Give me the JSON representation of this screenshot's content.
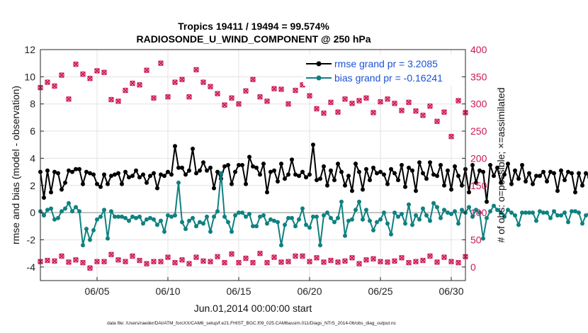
{
  "chart_data": {
    "type": "line",
    "title": "Tropics 19411 / 19494 = 99.574%",
    "subtitle": "RADIOSONDE_U_WIND_COMPONENT @ 250 hPa",
    "xlabel": "Jun.01,2014 00:00:00 start",
    "ylabel": "rmse and bias (model - observation)",
    "ylabel_right": "# of obs: o=possible; ×=assimilated",
    "xlim": [
      1,
      31
    ],
    "ylim": [
      -5,
      12
    ],
    "ylim_right": [
      -25,
      400
    ],
    "x_tick_values": [
      5,
      10,
      15,
      20,
      25,
      30
    ],
    "x_tick_labels": [
      "06/05",
      "06/10",
      "06/15",
      "06/20",
      "06/25",
      "06/30"
    ],
    "y_tick_labels": [
      "-4",
      "-2",
      "0",
      "2",
      "4",
      "6",
      "8",
      "10",
      "12"
    ],
    "y_right_tick_labels": [
      "0",
      "50",
      "100",
      "150",
      "200",
      "250",
      "300",
      "350",
      "400"
    ],
    "colors": {
      "rmse": "#000000",
      "bias": "#0f8080",
      "obs": "#cc1756",
      "zero_line": "#b0b0b0",
      "legend_text": "#1a52d6"
    },
    "series": [
      {
        "name": "rmse grand pr = 3.2085",
        "axis": "left",
        "x_start": 1.0,
        "x_step": 0.25,
        "values": [
          3.0,
          1.1,
          3.1,
          1.5,
          3.0,
          2.9,
          1.7,
          2.2,
          3.1,
          3.0,
          3.2,
          3.2,
          2.1,
          3.0,
          2.9,
          2.8,
          2.1,
          1.9,
          2.8,
          2.1,
          2.7,
          2.8,
          2.9,
          2.1,
          3.0,
          2.6,
          2.7,
          3.1,
          2.6,
          2.8,
          2.2,
          2.7,
          2.9,
          1.8,
          2.8,
          2.7,
          3.0,
          2.8,
          4.9,
          3.3,
          3.3,
          2.8,
          3.1,
          4.7,
          2.9,
          3.1,
          3.7,
          3.1,
          3.3,
          1.8,
          3.0,
          2.5,
          3.4,
          3.5,
          2.1,
          3.0,
          3.5,
          3.5,
          2.1,
          4.1,
          3.4,
          3.3,
          2.8,
          3.6,
          1.5,
          3.0,
          3.1,
          2.3,
          3.6,
          2.5,
          2.8,
          3.9,
          2.8,
          2.7,
          3.0,
          2.6,
          2.8,
          5.0,
          2.4,
          2.5,
          3.4,
          2.0,
          3.1,
          2.4,
          3.6,
          3.0,
          2.0,
          2.7,
          1.6,
          3.6,
          3.0,
          1.7,
          3.2,
          2.4,
          3.3,
          2.9,
          3.0,
          2.8,
          2.1,
          3.2,
          2.9,
          2.4,
          3.5,
          1.9,
          3.3,
          3.1,
          1.6,
          3.7,
          2.9,
          2.5,
          3.7,
          2.8,
          2.7,
          3.5,
          2.0,
          3.1,
          1.7,
          3.4,
          2.7,
          2.0,
          3.2,
          1.5,
          3.5,
          2.2,
          3.1,
          3.0,
          0.8,
          3.5,
          2.7,
          3.3,
          2.2,
          2.8,
          3.6,
          2.1,
          3.1,
          2.5,
          3.5,
          2.3,
          2.9,
          2.1,
          2.7,
          2.7,
          3.0,
          2.3,
          3.0,
          2.9,
          1.6,
          3.1,
          2.4,
          3.0,
          2.9,
          1.5,
          2.9,
          2.0,
          2.9,
          2.6,
          2.2,
          4.9,
          2.4,
          4.1,
          3.2,
          2.3,
          3.0,
          1.8,
          3.3,
          2.6,
          3.2,
          2.4,
          3.0,
          2.5,
          2.4,
          2.7,
          1.6
        ],
        "color": "#000000"
      },
      {
        "name": "bias grand pr = -0.16241",
        "axis": "left",
        "x_start": 1.0,
        "x_step": 0.25,
        "values": [
          0.1,
          -0.2,
          0.2,
          0.3,
          -0.5,
          -0.4,
          0.1,
          0.3,
          0.7,
          0.1,
          0.4,
          0.1,
          -2.4,
          -1.2,
          -2.0,
          -1.3,
          -0.5,
          -0.3,
          0.2,
          -1.9,
          0.1,
          -0.3,
          -0.3,
          -0.3,
          -0.4,
          -0.6,
          -0.3,
          -0.4,
          -0.3,
          -0.8,
          -0.5,
          -0.4,
          -0.5,
          -0.9,
          -0.6,
          -1.4,
          -0.2,
          -0.3,
          -0.2,
          2.2,
          -0.7,
          -1.2,
          -0.6,
          -0.4,
          -1.0,
          -0.7,
          -0.8,
          -0.3,
          -1.4,
          -0.3,
          0.1,
          2.9,
          -0.3,
          -0.7,
          -1.4,
          -0.2,
          0.0,
          0.0,
          -0.3,
          -0.1,
          -1.0,
          -1.0,
          -0.3,
          -0.2,
          -0.8,
          -0.5,
          -0.6,
          -0.7,
          -2.4,
          -0.9,
          -0.4,
          -0.4,
          -1.0,
          -0.5,
          0.3,
          -0.9,
          -1.1,
          -0.3,
          -0.3,
          -2.4,
          -0.2,
          0.0,
          -0.4,
          -0.7,
          -0.4,
          0.8,
          -1.7,
          -0.6,
          -0.5,
          0.2,
          0.8,
          -0.5,
          0.2,
          -0.6,
          -1.3,
          -0.7,
          -0.5,
          0.0,
          -0.8,
          -1.6,
          0.0,
          -0.3,
          -0.1,
          -0.8,
          0.6,
          -0.9,
          -0.2,
          -0.5,
          0.3,
          -0.2,
          -0.6,
          0.7,
          0.4,
          -0.4,
          0.2,
          0.0,
          -0.1,
          0.1,
          -0.8,
          0.2,
          0.0,
          0.4,
          -0.3,
          0.2,
          0.0,
          -1.9,
          -0.4,
          0.1,
          0.5,
          0.2,
          0.0,
          -0.3,
          0.2,
          0.0,
          -0.2,
          -0.9,
          0.0,
          0.0,
          0.0,
          0.0,
          -0.6,
          0.1,
          0.0,
          0.0,
          -0.4,
          0.1,
          -0.2,
          -0.2,
          0.0,
          -0.7,
          0.1,
          0.1,
          0.0,
          -0.8,
          -0.2,
          -0.1,
          2.6,
          -0.4,
          -2.7,
          -0.9,
          -0.1,
          0.2,
          -0.2,
          0.1,
          -0.1,
          -0.3,
          -0.4,
          -0.3,
          0.0,
          0.1,
          0.2,
          0.5
        ],
        "color": "#0f8080"
      },
      {
        "name": "# obs possible (high)",
        "axis": "right",
        "x_start": 1.0,
        "x_step": 0.5,
        "values": [
          330,
          340,
          333,
          353,
          309,
          373,
          355,
          347,
          361,
          358,
          308,
          305,
          325,
          338,
          335,
          362,
          311,
          375,
          313,
          340,
          345,
          313,
          363,
          340,
          332,
          319,
          298,
          311,
          300,
          324,
          345,
          313,
          305,
          328,
          327,
          300,
          325,
          335,
          315,
          291,
          283,
          303,
          285,
          309,
          301,
          306,
          311,
          284,
          304,
          309,
          301,
          288,
          303,
          287,
          279,
          296,
          268,
          285,
          240,
          306,
          284,
          282
        ],
        "color": "#cc1756"
      },
      {
        "name": "# obs possible (low)",
        "axis": "right",
        "x_start": 1.0,
        "x_step": 0.5,
        "values": [
          10,
          12,
          11,
          20,
          9,
          13,
          8,
          -2,
          10,
          10,
          23,
          13,
          10,
          20,
          12,
          6,
          10,
          10,
          18,
          8,
          13,
          6,
          18,
          11,
          10,
          19,
          8,
          24,
          8,
          16,
          8,
          25,
          8,
          18,
          9,
          10,
          20,
          20,
          10,
          17,
          9,
          12,
          9,
          11,
          17,
          6,
          13,
          15,
          10,
          9,
          11,
          17,
          8,
          10,
          12,
          20,
          9,
          18,
          10,
          8,
          19,
          10,
          2
        ],
        "color": "#cc1756"
      }
    ]
  },
  "legend": {
    "rmse_label": "rmse grand pr = 3.2085",
    "bias_label": "bias grand pr = -0.16241"
  },
  "footnote": "data file: /Users/raeder/DAI/ATM_forcXX/CAM6_setup/f.e21.FHIST_BGC.f09_025.CAM6assim.011/Diags_NTrS_2014-06/obs_diag_output.nc"
}
